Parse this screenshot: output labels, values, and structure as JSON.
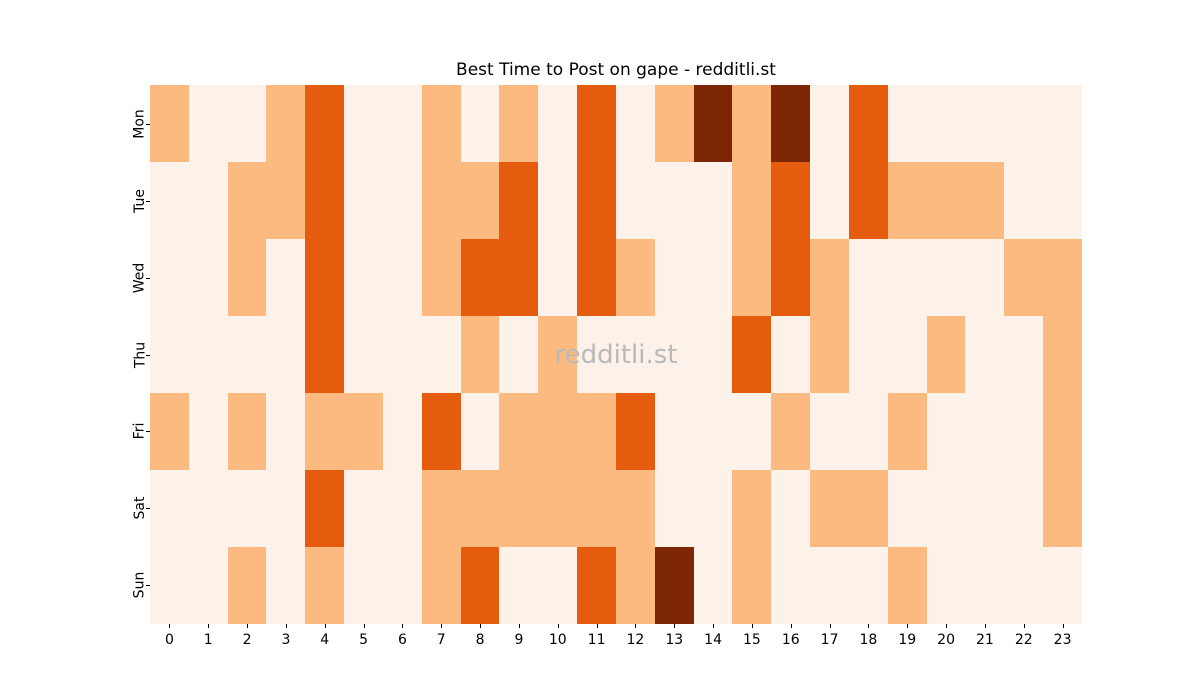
{
  "title": "Best Time to Post on gape - redditli.st",
  "watermark": "redditli.st",
  "colors": {
    "background": "#ffffff",
    "text": "#000000",
    "watermark_text": "#b9b9b9",
    "palette": [
      "#fdf2e9",
      "#fdba80",
      "#e65c0e",
      "#7c2605"
    ]
  },
  "chart_data": {
    "type": "heatmap",
    "title": "Best Time to Post on gape - redditli.st",
    "xlabel": "",
    "ylabel": "",
    "x": [
      0,
      1,
      2,
      3,
      4,
      5,
      6,
      7,
      8,
      9,
      10,
      11,
      12,
      13,
      14,
      15,
      16,
      17,
      18,
      19,
      20,
      21,
      22,
      23
    ],
    "categories": [
      "Mon",
      "Tue",
      "Wed",
      "Thu",
      "Fri",
      "Sat",
      "Sun"
    ],
    "values_note": "activity level per day/hour, 0=lowest (cream) to 3=highest (dark brown); colors map via colors.palette",
    "values": [
      [
        1,
        0,
        0,
        1,
        2,
        0,
        0,
        1,
        0,
        1,
        0,
        2,
        0,
        1,
        3,
        1,
        3,
        0,
        2,
        0,
        0,
        0,
        0,
        0
      ],
      [
        0,
        0,
        1,
        1,
        2,
        0,
        0,
        1,
        1,
        2,
        0,
        2,
        0,
        0,
        0,
        1,
        2,
        0,
        2,
        1,
        1,
        1,
        0,
        0
      ],
      [
        0,
        0,
        1,
        0,
        2,
        0,
        0,
        1,
        2,
        2,
        0,
        2,
        1,
        0,
        0,
        1,
        2,
        1,
        0,
        0,
        0,
        0,
        1,
        1
      ],
      [
        0,
        0,
        0,
        0,
        2,
        0,
        0,
        0,
        1,
        0,
        1,
        0,
        0,
        0,
        0,
        2,
        0,
        1,
        0,
        0,
        1,
        0,
        0,
        1
      ],
      [
        1,
        0,
        1,
        0,
        1,
        1,
        0,
        2,
        0,
        1,
        1,
        1,
        2,
        0,
        0,
        0,
        1,
        0,
        0,
        1,
        0,
        0,
        0,
        1
      ],
      [
        0,
        0,
        0,
        0,
        2,
        0,
        0,
        1,
        1,
        1,
        1,
        1,
        1,
        0,
        0,
        1,
        0,
        1,
        1,
        0,
        0,
        0,
        0,
        1
      ],
      [
        0,
        0,
        1,
        0,
        1,
        0,
        0,
        1,
        2,
        0,
        0,
        2,
        1,
        3,
        0,
        1,
        0,
        0,
        0,
        1,
        0,
        0,
        0,
        0
      ]
    ],
    "legend": "none",
    "grid": false,
    "axis_ranges": {
      "x_hours": [
        0,
        23
      ],
      "y_days": [
        "Mon",
        "Sun"
      ]
    }
  }
}
